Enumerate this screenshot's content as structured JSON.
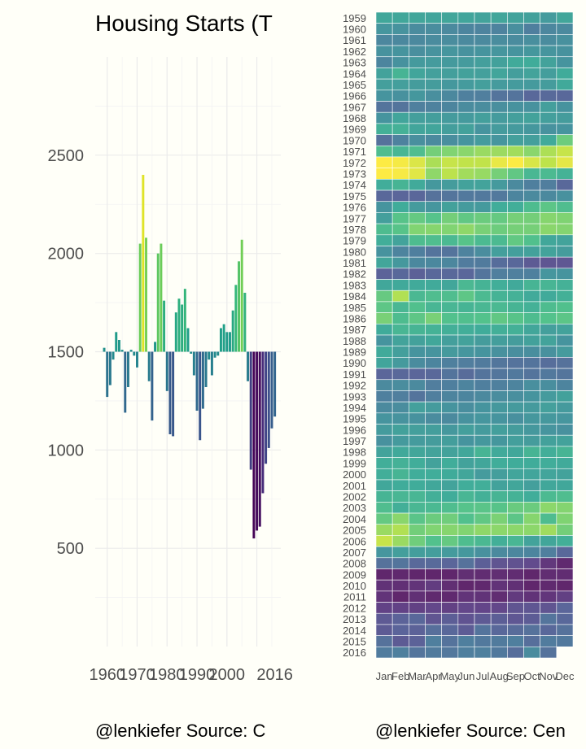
{
  "chart_data": [
    {
      "type": "bar",
      "title": "Housing Starts (T",
      "caption": "@lenkiefer Source: C",
      "xlabel": "",
      "ylabel": "",
      "baseline": 1500,
      "ylim": [
        0,
        3000
      ],
      "xlim": [
        1956,
        2018
      ],
      "y_ticks": [
        500,
        1000,
        1500,
        2000,
        2500
      ],
      "x_ticks": [
        1960,
        1970,
        1980,
        1990,
        2000,
        2016
      ],
      "x_tick_labels": [
        "1960",
        "1970",
        "1980",
        "1990",
        "2000",
        "2016"
      ],
      "grid": true,
      "color_scale": "viridis",
      "color_domain": [
        540,
        2490
      ],
      "series": [
        {
          "x": [
            1959,
            1960,
            1961,
            1962,
            1963,
            1964,
            1965,
            1966,
            1967,
            1968,
            1969,
            1970,
            1971,
            1972,
            1973,
            1974,
            1975,
            1976,
            1977,
            1978,
            1979,
            1980,
            1981,
            1982,
            1983,
            1984,
            1985,
            1986,
            1987,
            1988,
            1989,
            1990,
            1991,
            1992,
            1993,
            1994,
            1995,
            1996,
            1997,
            1998,
            1999,
            2000,
            2001,
            2002,
            2003,
            2004,
            2005,
            2006,
            2007,
            2008,
            2009,
            2010,
            2011,
            2012,
            2013,
            2014,
            2015,
            2016
          ],
          "values": [
            1520,
            1270,
            1330,
            1460,
            1600,
            1560,
            1510,
            1190,
            1320,
            1510,
            1480,
            1420,
            2050,
            2400,
            2080,
            1350,
            1150,
            1550,
            2000,
            2050,
            1760,
            1300,
            1080,
            1070,
            1700,
            1770,
            1740,
            1820,
            1620,
            1490,
            1380,
            1200,
            1050,
            1210,
            1320,
            1460,
            1380,
            1470,
            1480,
            1620,
            1640,
            1600,
            1600,
            1710,
            1840,
            1960,
            2070,
            1800,
            1350,
            900,
            550,
            590,
            610,
            780,
            930,
            1010,
            1110,
            1170
          ]
        }
      ]
    },
    {
      "type": "heatmap",
      "caption": "@lenkiefer Source: Cen",
      "years": [
        "1959",
        "1960",
        "1961",
        "1962",
        "1963",
        "1964",
        "1965",
        "1966",
        "1967",
        "1968",
        "1969",
        "1970",
        "1971",
        "1972",
        "1973",
        "1974",
        "1975",
        "1976",
        "1977",
        "1978",
        "1979",
        "1980",
        "1981",
        "1982",
        "1983",
        "1984",
        "1985",
        "1986",
        "1987",
        "1988",
        "1989",
        "1990",
        "1991",
        "1992",
        "1993",
        "1994",
        "1995",
        "1996",
        "1997",
        "1998",
        "1999",
        "2000",
        "2001",
        "2002",
        "2003",
        "2004",
        "2005",
        "2006",
        "2007",
        "2008",
        "2009",
        "2010",
        "2011",
        "2012",
        "2013",
        "2014",
        "2015",
        "2016"
      ],
      "months": [
        "Jan",
        "Feb",
        "Mar",
        "Apr",
        "May",
        "Jun",
        "Jul",
        "Aug",
        "Sep",
        "Oct",
        "Nov",
        "Dec"
      ],
      "color_scale": "viridis",
      "color_domain": [
        540,
        2490
      ],
      "values": [
        [
          1580,
          1580,
          1560,
          1550,
          1560,
          1550,
          1540,
          1560,
          1540,
          1520,
          1470,
          1560
        ],
        [
          1420,
          1390,
          1320,
          1330,
          1300,
          1260,
          1240,
          1230,
          1350,
          1200,
          1270,
          1300
        ],
        [
          1270,
          1280,
          1290,
          1320,
          1330,
          1300,
          1310,
          1330,
          1320,
          1350,
          1320,
          1370
        ],
        [
          1380,
          1400,
          1350,
          1390,
          1420,
          1380,
          1400,
          1420,
          1400,
          1430,
          1410,
          1380
        ],
        [
          1260,
          1380,
          1450,
          1470,
          1450,
          1470,
          1500,
          1520,
          1600,
          1620,
          1530,
          1400
        ],
        [
          1530,
          1700,
          1550,
          1510,
          1500,
          1520,
          1510,
          1550,
          1490,
          1540,
          1490,
          1610
        ],
        [
          1500,
          1500,
          1480,
          1480,
          1440,
          1460,
          1500,
          1470,
          1460,
          1450,
          1480,
          1590
        ],
        [
          1400,
          1370,
          1430,
          1350,
          1280,
          1210,
          1190,
          1100,
          1100,
          1000,
          1020,
          1000
        ],
        [
          1100,
          1100,
          1210,
          1220,
          1260,
          1320,
          1330,
          1350,
          1380,
          1380,
          1500,
          1390
        ],
        [
          1400,
          1550,
          1500,
          1490,
          1460,
          1450,
          1500,
          1470,
          1500,
          1530,
          1500,
          1480
        ],
        [
          1660,
          1670,
          1550,
          1550,
          1490,
          1520,
          1400,
          1460,
          1450,
          1430,
          1380,
          1400
        ],
        [
          1080,
          1220,
          1350,
          1300,
          1340,
          1400,
          1460,
          1410,
          1510,
          1500,
          1600,
          1960
        ],
        [
          1800,
          1720,
          1800,
          1990,
          2050,
          2080,
          2140,
          2150,
          2170,
          2080,
          2210,
          2300
        ],
        [
          2490,
          2460,
          2370,
          2200,
          2300,
          2280,
          2280,
          2420,
          2480,
          2360,
          2270,
          2400
        ],
        [
          2490,
          2470,
          2390,
          2100,
          2260,
          2170,
          2130,
          2000,
          1900,
          1730,
          1760,
          1680
        ],
        [
          1630,
          1700,
          1600,
          1440,
          1480,
          1530,
          1540,
          1450,
          1300,
          1200,
          1180,
          1000
        ],
        [
          1000,
          980,
          990,
          1080,
          1110,
          1140,
          1140,
          1140,
          1260,
          1310,
          1290,
          1370
        ],
        [
          1400,
          1620,
          1470,
          1420,
          1520,
          1470,
          1450,
          1630,
          1640,
          1780,
          1880,
          1800
        ],
        [
          1500,
          1860,
          1920,
          1850,
          1990,
          1900,
          1950,
          1920,
          2000,
          1990,
          2070,
          2040
        ],
        [
          1780,
          1860,
          2050,
          2070,
          2050,
          2100,
          2010,
          1960,
          2000,
          2000,
          2080,
          2060
        ],
        [
          1640,
          1540,
          1780,
          1800,
          1750,
          1860,
          1760,
          1760,
          1910,
          1820,
          1580,
          1540
        ],
        [
          1390,
          1250,
          1200,
          1100,
          1100,
          1230,
          1330,
          1500,
          1500,
          1520,
          1540,
          1480
        ],
        [
          1570,
          1440,
          1280,
          1280,
          1270,
          1170,
          1160,
          1040,
          1000,
          900,
          860,
          870
        ],
        [
          960,
          1000,
          940,
          1000,
          1010,
          990,
          1110,
          1190,
          1210,
          1210,
          1420,
          1400
        ],
        [
          1580,
          1590,
          1600,
          1600,
          1560,
          1740,
          1690,
          1640,
          1590,
          1700,
          1710,
          1670
        ],
        [
          1930,
          2220,
          1740,
          1800,
          1800,
          1890,
          1760,
          1690,
          1670,
          1600,
          1600,
          1660
        ],
        [
          1890,
          1730,
          1820,
          1720,
          1720,
          1700,
          1730,
          1750,
          1700,
          1670,
          1780,
          1820
        ],
        [
          2010,
          1780,
          1890,
          2010,
          1830,
          1810,
          1840,
          1900,
          1860,
          1780,
          1840,
          1880
        ],
        [
          1610,
          1720,
          1700,
          1680,
          1650,
          1640,
          1620,
          1650,
          1660,
          1560,
          1500,
          1530
        ],
        [
          1400,
          1540,
          1520,
          1580,
          1500,
          1530,
          1480,
          1490,
          1480,
          1520,
          1540,
          1400
        ],
        [
          1600,
          1500,
          1400,
          1400,
          1450,
          1420,
          1400,
          1370,
          1340,
          1340,
          1370,
          1470
        ],
        [
          1550,
          1450,
          1320,
          1260,
          1210,
          1180,
          1160,
          1120,
          1090,
          1100,
          1050,
          1080
        ],
        [
          980,
          1000,
          980,
          1000,
          1100,
          1030,
          1100,
          1120,
          1150,
          1100,
          1140,
          1110
        ],
        [
          1300,
          1330,
          1300,
          1180,
          1200,
          1240,
          1200,
          1210,
          1250,
          1350,
          1340,
          1240
        ],
        [
          1210,
          1190,
          1100,
          1190,
          1240,
          1260,
          1290,
          1330,
          1350,
          1400,
          1460,
          1520
        ],
        [
          1300,
          1330,
          1510,
          1460,
          1400,
          1340,
          1400,
          1440,
          1450,
          1450,
          1510,
          1450
        ],
        [
          1400,
          1390,
          1380,
          1320,
          1300,
          1380,
          1420,
          1400,
          1360,
          1430,
          1440,
          1420
        ],
        [
          1460,
          1520,
          1500,
          1490,
          1440,
          1500,
          1460,
          1500,
          1480,
          1440,
          1410,
          1370
        ],
        [
          1370,
          1450,
          1460,
          1480,
          1490,
          1400,
          1440,
          1430,
          1500,
          1480,
          1520,
          1530
        ],
        [
          1540,
          1590,
          1560,
          1540,
          1530,
          1580,
          1700,
          1600,
          1580,
          1700,
          1640,
          1700
        ],
        [
          1640,
          1670,
          1630,
          1530,
          1630,
          1530,
          1570,
          1630,
          1620,
          1620,
          1630,
          1600
        ],
        [
          1640,
          1700,
          1630,
          1630,
          1610,
          1570,
          1460,
          1490,
          1550,
          1550,
          1550,
          1530
        ],
        [
          1580,
          1620,
          1620,
          1580,
          1540,
          1630,
          1640,
          1530,
          1570,
          1500,
          1580,
          1580
        ],
        [
          1700,
          1720,
          1720,
          1650,
          1620,
          1720,
          1660,
          1700,
          1680,
          1630,
          1760,
          1800
        ],
        [
          1800,
          1650,
          1730,
          1750,
          1800,
          1850,
          1870,
          1860,
          1940,
          1950,
          2090,
          2060
        ],
        [
          1920,
          2080,
          1870,
          1950,
          1970,
          1820,
          1900,
          2020,
          1880,
          2070,
          1780,
          2040
        ],
        [
          2140,
          2220,
          1980,
          2050,
          2070,
          2050,
          2100,
          2090,
          2090,
          2090,
          2160,
          1990
        ],
        [
          2300,
          2140,
          1970,
          1830,
          1920,
          1790,
          1740,
          1650,
          1720,
          1540,
          1570,
          1650
        ],
        [
          1420,
          1500,
          1490,
          1490,
          1470,
          1440,
          1370,
          1300,
          1270,
          1260,
          1190,
          1000
        ],
        [
          1080,
          1110,
          1010,
          1020,
          980,
          1080,
          930,
          850,
          830,
          780,
          650,
          560
        ],
        [
          490,
          550,
          510,
          480,
          540,
          590,
          580,
          590,
          580,
          530,
          580,
          580
        ],
        [
          610,
          600,
          630,
          680,
          590,
          540,
          550,
          620,
          600,
          530,
          560,
          530
        ],
        [
          630,
          520,
          600,
          560,
          560,
          630,
          620,
          580,
          660,
          620,
          640,
          700
        ],
        [
          720,
          720,
          710,
          750,
          710,
          750,
          740,
          750,
          850,
          860,
          850,
          980
        ],
        [
          890,
          960,
          1000,
          850,
          920,
          840,
          890,
          920,
          870,
          910,
          1110,
          1000
        ],
        [
          900,
          970,
          950,
          1060,
          1000,
          910,
          1100,
          1000,
          1030,
          1080,
          1000,
          1080
        ],
        [
          1080,
          900,
          950,
          1200,
          1090,
          1200,
          1140,
          1160,
          1200,
          1060,
          1170,
          1140
        ],
        [
          1170,
          1210,
          1110,
          1160,
          1130,
          1200,
          1210,
          1150,
          1050,
          1320,
          1090,
          null
        ]
      ]
    }
  ]
}
